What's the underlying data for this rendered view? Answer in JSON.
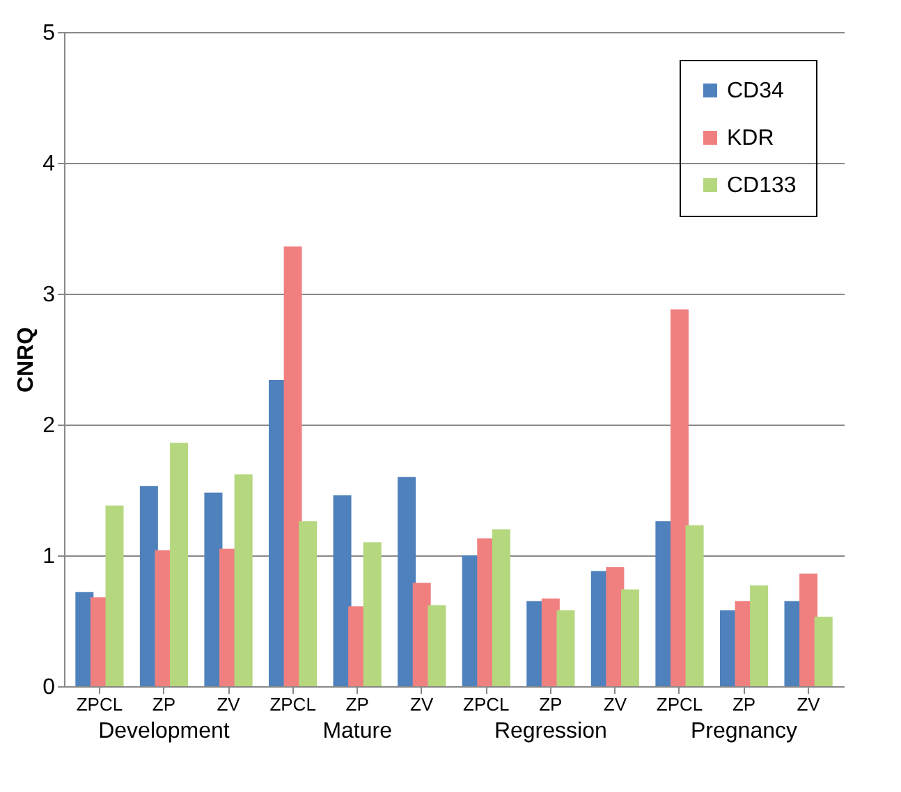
{
  "chart_data": {
    "type": "bar",
    "ylabel": "CNRQ",
    "categories": [
      "ZPCL",
      "ZP",
      "ZV",
      "ZPCL",
      "ZP",
      "ZV",
      "ZPCL",
      "ZP",
      "ZV",
      "ZPCL",
      "ZP",
      "ZV"
    ],
    "series": [
      {
        "name": "CD34",
        "color": "#4f81bd",
        "values": [
          0.72,
          1.53,
          1.48,
          2.34,
          1.46,
          1.6,
          1.0,
          0.65,
          0.88,
          1.26,
          0.58,
          0.65
        ]
      },
      {
        "name": "KDR",
        "color": "#f08080",
        "values": [
          0.68,
          1.04,
          1.05,
          3.36,
          0.61,
          0.79,
          1.13,
          0.67,
          0.91,
          2.88,
          0.65,
          0.86
        ]
      },
      {
        "name": "CD133",
        "color": "#b5d77e",
        "values": [
          1.38,
          1.86,
          1.62,
          1.26,
          1.1,
          0.62,
          1.2,
          0.58,
          0.74,
          1.23,
          0.77,
          0.53
        ]
      }
    ],
    "annotations": [
      "Development",
      "Mature",
      "Regression",
      "Pregnancy"
    ],
    "ylim": [
      0,
      5
    ],
    "yticks": [
      0,
      1,
      2,
      3,
      4,
      5
    ],
    "grid": "y",
    "legend": "top right"
  }
}
